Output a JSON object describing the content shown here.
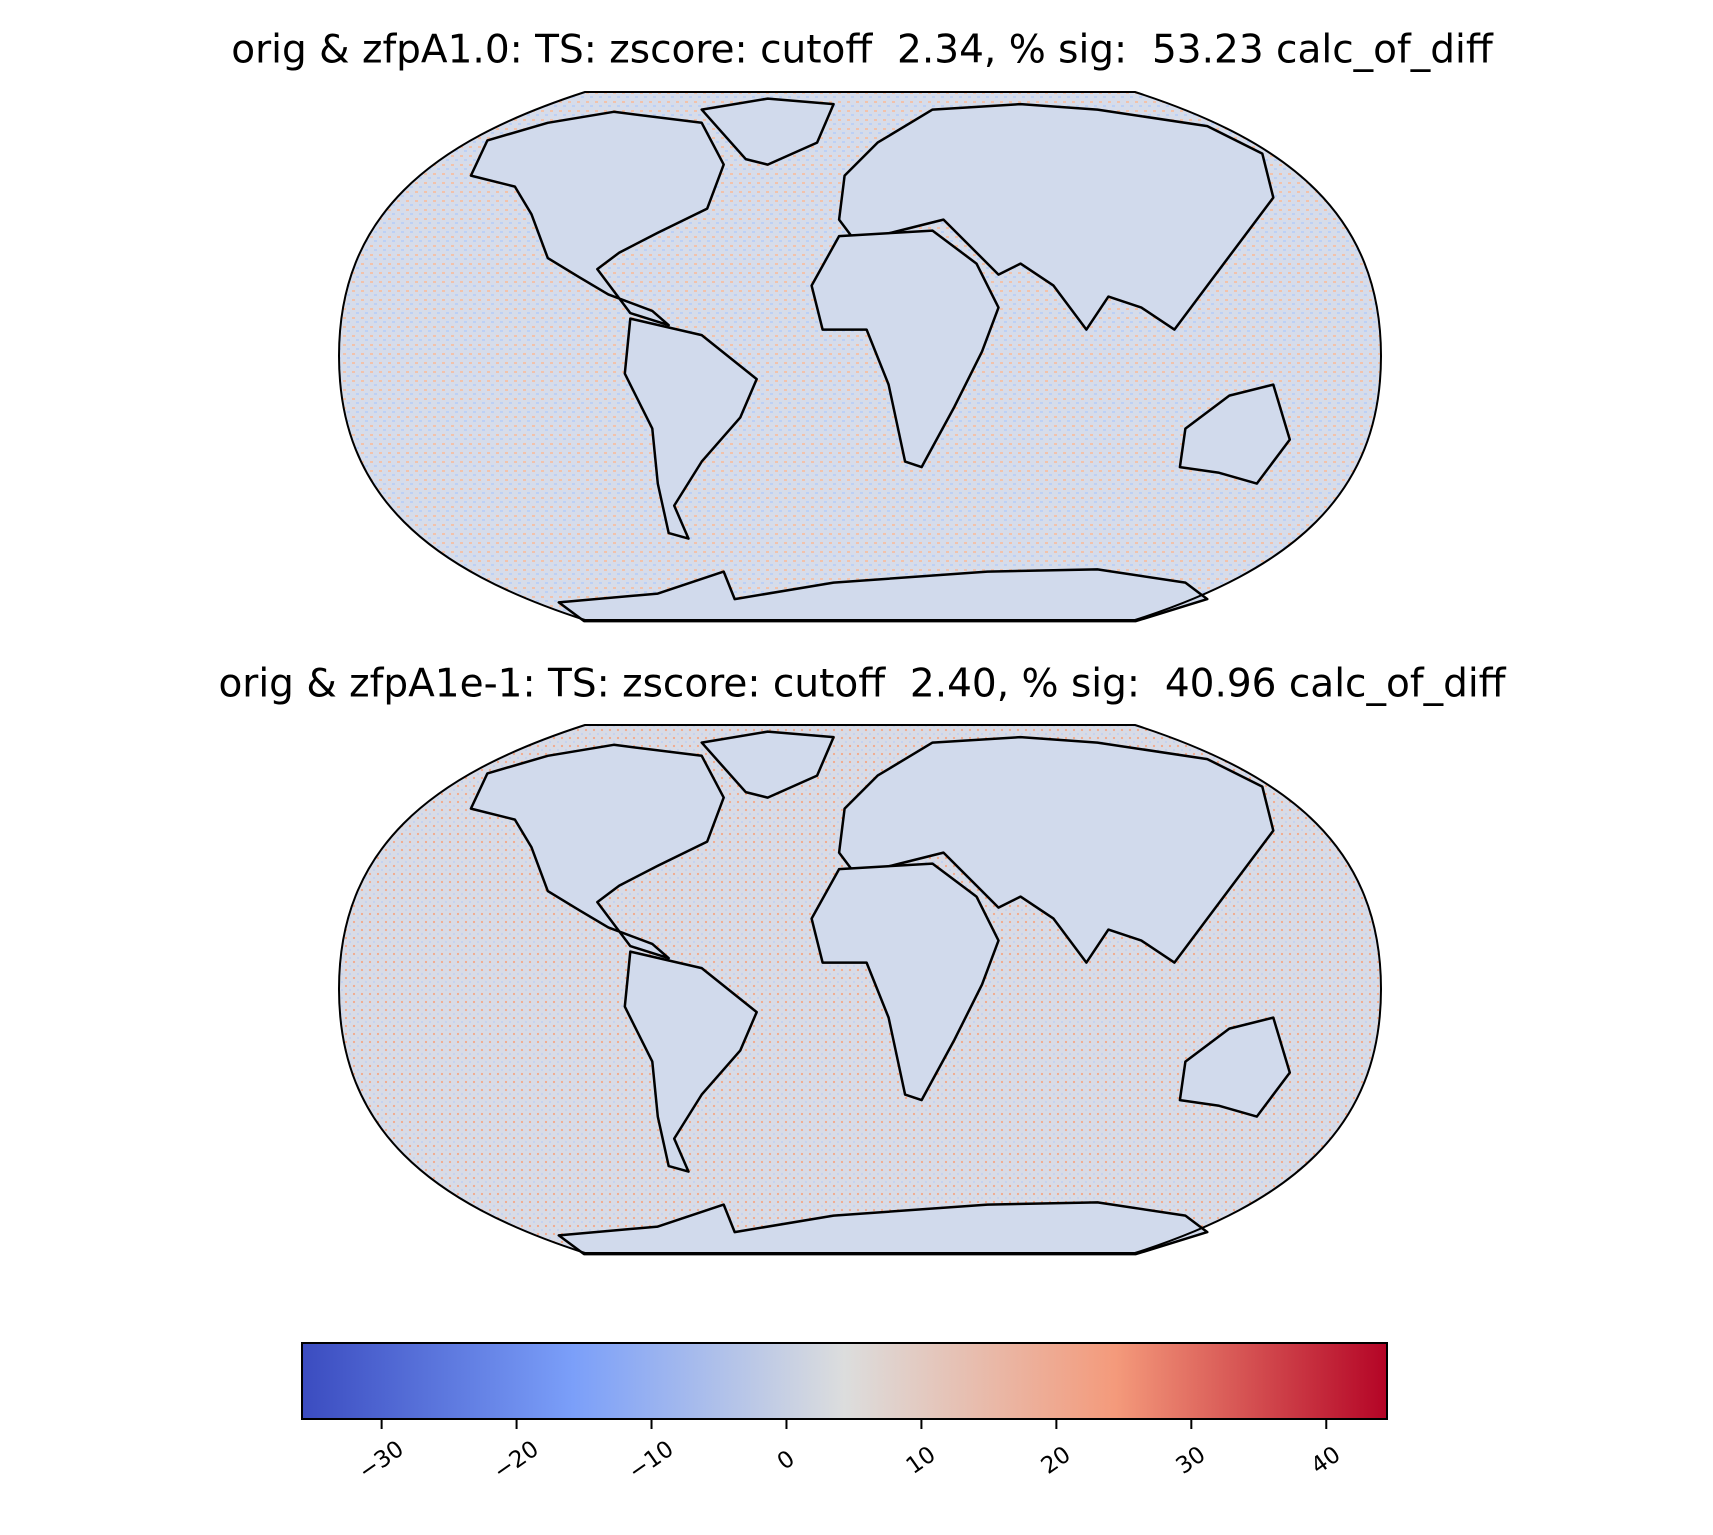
{
  "chart_data": {
    "type": "map",
    "panels": [
      {
        "title": "orig & zfpA1.0: TS: zscore: cutoff  2.34, % sig:  53.23 calc_of_diff"
      },
      {
        "title": "orig & zfpA1e-1: TS: zscore: cutoff  2.40, % sig:  40.96 calc_of_diff"
      }
    ],
    "colorbar": {
      "colormap": "coolwarm",
      "xlim": [
        -35.9,
        44.5
      ],
      "xticks": [
        {
          "value": -30,
          "label": "−30"
        },
        {
          "value": -20,
          "label": "−20"
        },
        {
          "value": -10,
          "label": "−10"
        },
        0,
        10,
        20,
        30,
        40
      ]
    }
  }
}
